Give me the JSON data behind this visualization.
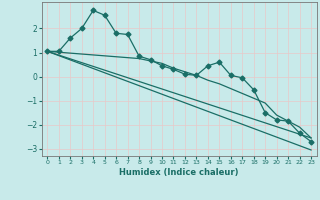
{
  "xlabel": "Humidex (Indice chaleur)",
  "background_color": "#c8eaea",
  "grid_color": "#b8d8d8",
  "line_color": "#1a6e66",
  "xlim": [
    -0.5,
    23.5
  ],
  "ylim": [
    -3.3,
    3.1
  ],
  "yticks": [
    -3,
    -2,
    -1,
    0,
    1,
    2
  ],
  "xticks": [
    0,
    1,
    2,
    3,
    4,
    5,
    6,
    7,
    8,
    9,
    10,
    11,
    12,
    13,
    14,
    15,
    16,
    17,
    18,
    19,
    20,
    21,
    22,
    23
  ],
  "series1_x": [
    0,
    1,
    2,
    3,
    4,
    5,
    6,
    7,
    8,
    9,
    10,
    11,
    12,
    13,
    14,
    15,
    16,
    17,
    18,
    19,
    20,
    21,
    22,
    23
  ],
  "series1_y": [
    1.05,
    1.05,
    1.6,
    2.0,
    2.75,
    2.55,
    1.8,
    1.75,
    0.85,
    0.7,
    0.45,
    0.3,
    0.1,
    0.05,
    0.45,
    0.6,
    0.05,
    -0.05,
    -0.55,
    -1.5,
    -1.8,
    -1.85,
    -2.35,
    -2.7
  ],
  "series2_x": [
    0,
    8,
    9,
    10,
    11,
    12,
    13,
    14,
    15,
    16,
    17,
    18,
    19,
    20,
    21,
    22,
    23
  ],
  "series2_y": [
    1.05,
    0.75,
    0.65,
    0.55,
    0.35,
    0.2,
    0.05,
    -0.15,
    -0.3,
    -0.5,
    -0.7,
    -0.9,
    -1.1,
    -1.6,
    -1.85,
    -2.1,
    -2.55
  ],
  "series3_x": [
    0,
    23
  ],
  "series3_y": [
    1.05,
    -2.55
  ],
  "series4_x": [
    0,
    23
  ],
  "series4_y": [
    1.05,
    -3.05
  ]
}
